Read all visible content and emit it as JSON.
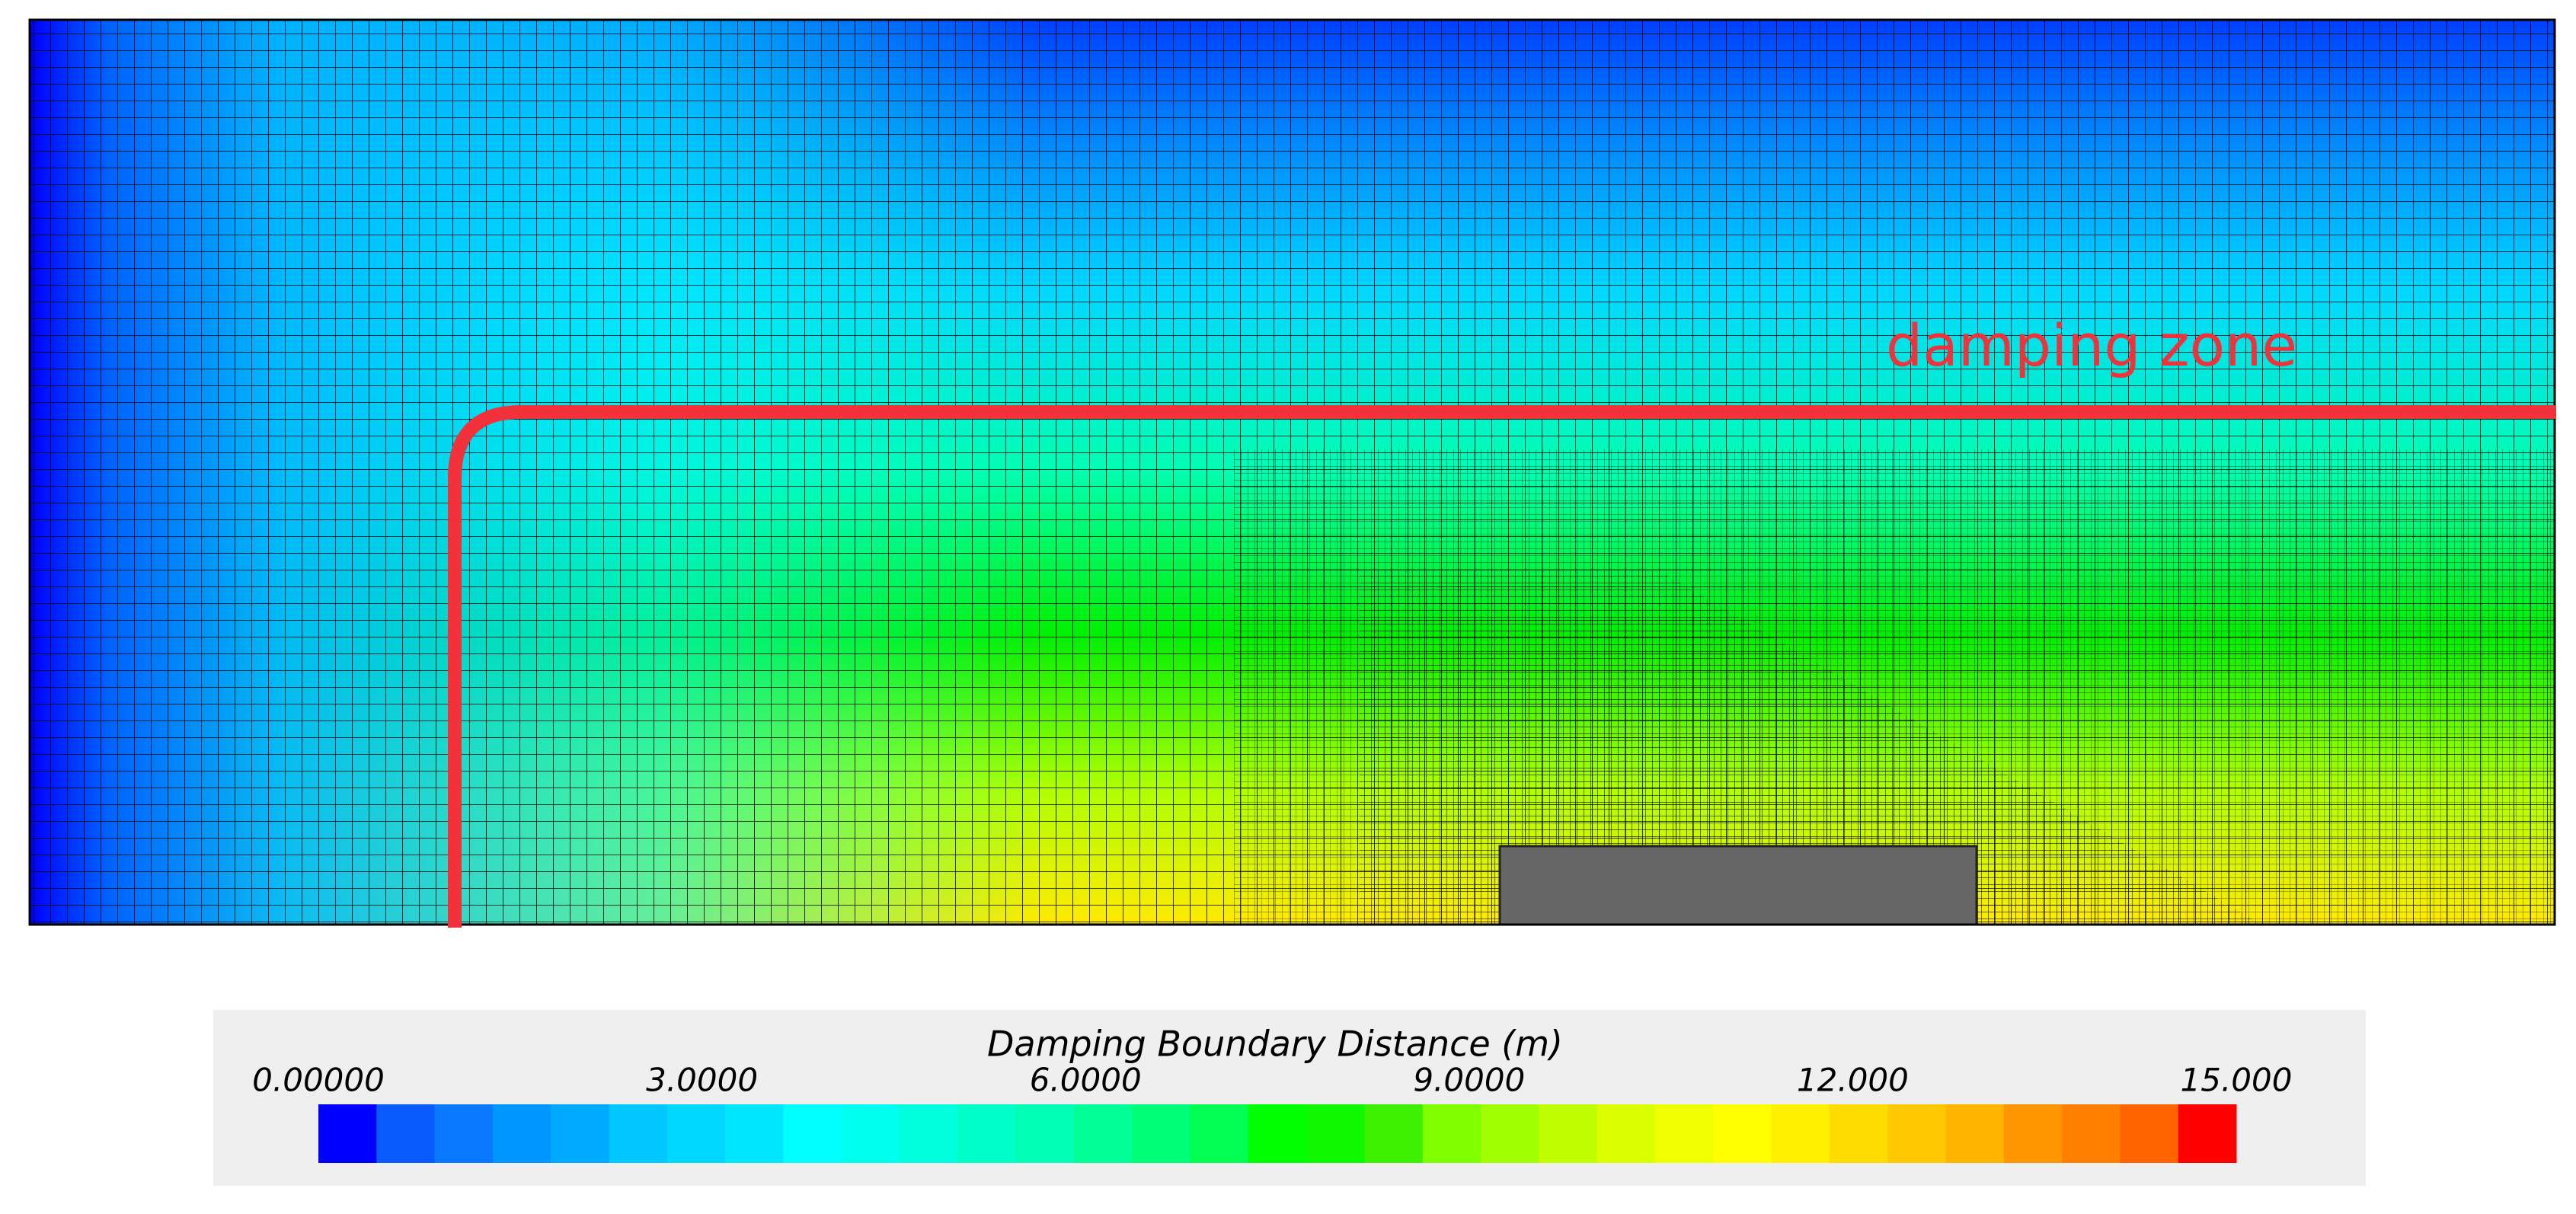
{
  "plot": {
    "annotation": "damping zone"
  },
  "colorbar": {
    "title": "Damping Boundary Distance (m)",
    "range": [
      0,
      15
    ],
    "ticks": [
      {
        "value": 0,
        "label": "0.00000"
      },
      {
        "value": 3,
        "label": "3.0000"
      },
      {
        "value": 6,
        "label": "6.0000"
      },
      {
        "value": 9,
        "label": "9.0000"
      },
      {
        "value": 12,
        "label": "12.000"
      },
      {
        "value": 15,
        "label": "15.000"
      }
    ],
    "colors": [
      "#0000ff",
      "#0a5cff",
      "#0a78ff",
      "#0096ff",
      "#00aaff",
      "#00c8ff",
      "#00d7ff",
      "#00e6ff",
      "#00ffff",
      "#00ffee",
      "#00ffdc",
      "#00ffc8",
      "#00ffb4",
      "#00ff96",
      "#00ff78",
      "#00ff50",
      "#00ff00",
      "#10f800",
      "#3cf000",
      "#80ff00",
      "#a0ff00",
      "#c0ff00",
      "#dcff00",
      "#f0ff00",
      "#ffff00",
      "#fff000",
      "#ffdc00",
      "#ffc800",
      "#ffb400",
      "#ff9600",
      "#ff8000",
      "#ff6400",
      "#ff0000"
    ]
  }
}
